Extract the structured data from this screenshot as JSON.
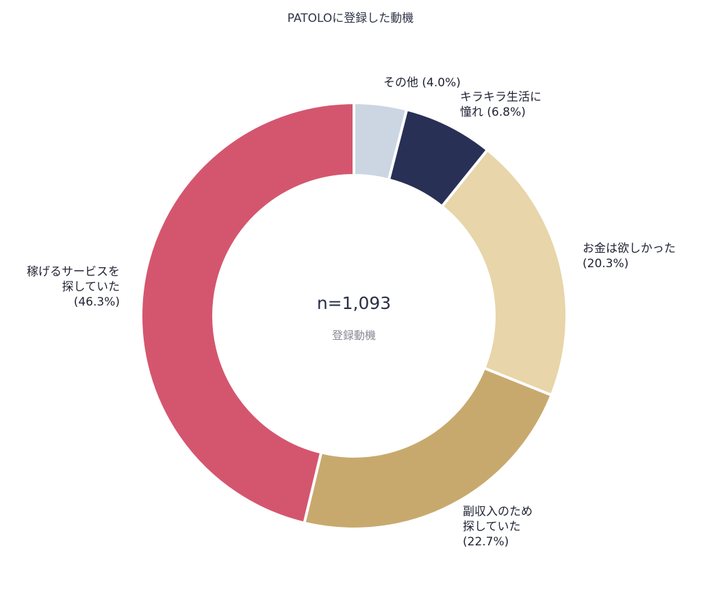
{
  "chart_data": {
    "type": "pie",
    "subtype": "donut",
    "title": "PATOLOに登録した動機",
    "center_text": "n=1,093",
    "center_subtext": "登録動機",
    "total_n": 1093,
    "start_angle": "12 o'clock, clockwise",
    "categories": [
      "その他",
      "キラキラ生活に憧れ",
      "お金は欲しかった",
      "副収入のため探していた",
      "稼げるサービスを探していた"
    ],
    "values": [
      4.0,
      6.8,
      20.3,
      22.7,
      46.3
    ],
    "unit": "%",
    "colors": [
      "#ccd6e2",
      "#293056",
      "#e8d5a9",
      "#c8a96d",
      "#d4566e"
    ],
    "legend": "none (direct labels)"
  },
  "title": "PATOLOに登録した動機",
  "center": {
    "n": "n=1,093",
    "sub": "登録動機"
  },
  "labels": {
    "other": {
      "line1": "その他 (4.0%)"
    },
    "kirakira": {
      "line1": "キラキラ生活に",
      "line2": "憧れ (6.8%)"
    },
    "money": {
      "line1": "お金は欲しかった",
      "line2": "(20.3%)"
    },
    "side": {
      "line1": "副収入のため",
      "line2": "探していた",
      "line3": "(22.7%)"
    },
    "earn": {
      "line1": "稼げるサービスを",
      "line2": "探していた",
      "line3": "(46.3%)"
    }
  }
}
